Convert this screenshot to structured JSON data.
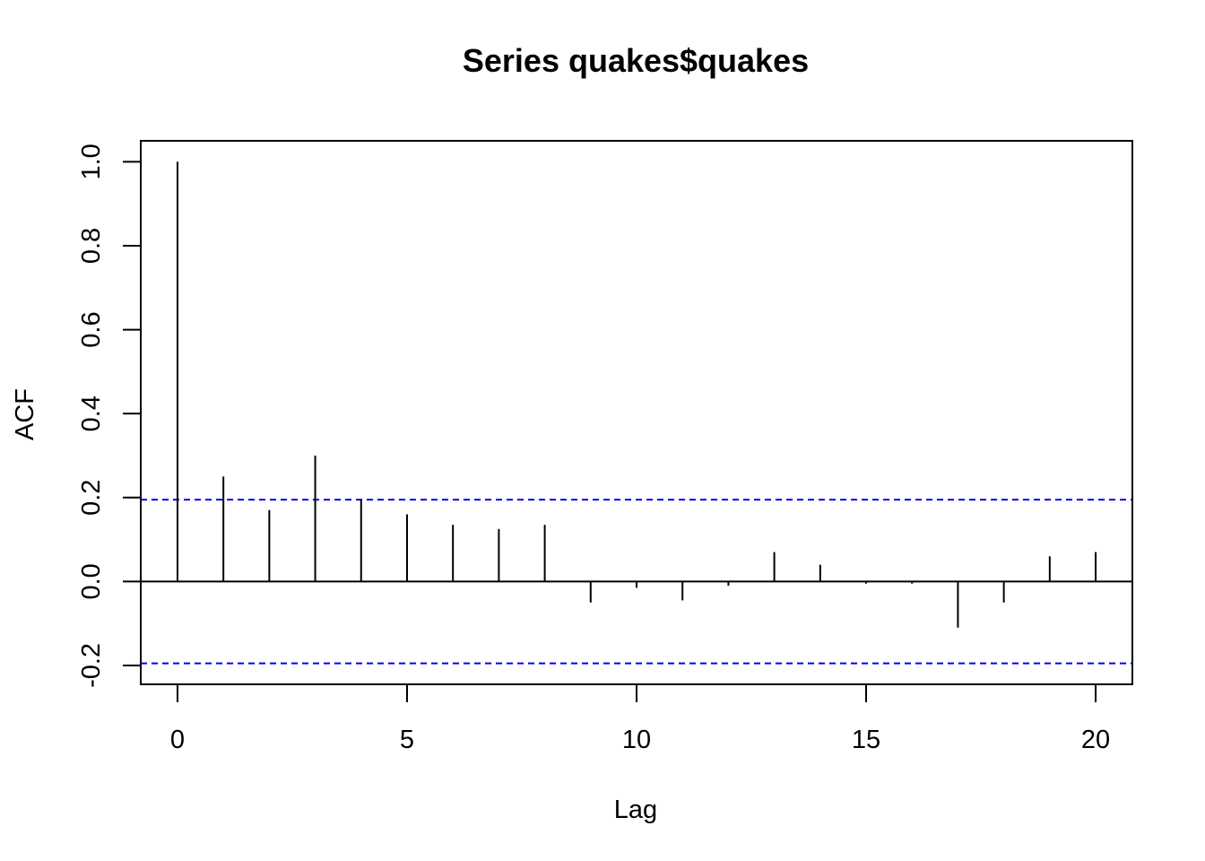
{
  "chart_data": {
    "type": "bar",
    "title": "Series  quakes$quakes",
    "xlabel": "Lag",
    "ylabel": "ACF",
    "xlim": [
      -0.8,
      20.8
    ],
    "ylim": [
      -0.245,
      1.05
    ],
    "x_ticks": [
      0,
      5,
      10,
      15,
      20
    ],
    "x_tick_labels": [
      "0",
      "5",
      "10",
      "15",
      "20"
    ],
    "y_ticks": [
      -0.2,
      0.0,
      0.2,
      0.4,
      0.6,
      0.8,
      1.0
    ],
    "y_tick_labels": [
      "-0.2",
      "0.0",
      "0.2",
      "0.4",
      "0.6",
      "0.8",
      "1.0"
    ],
    "lags": [
      0,
      1,
      2,
      3,
      4,
      5,
      6,
      7,
      8,
      9,
      10,
      11,
      12,
      13,
      14,
      15,
      16,
      17,
      18,
      19,
      20
    ],
    "acf": [
      1.0,
      0.25,
      0.17,
      0.3,
      0.195,
      0.16,
      0.135,
      0.125,
      0.135,
      -0.05,
      -0.015,
      -0.045,
      -0.01,
      0.07,
      0.04,
      -0.005,
      -0.005,
      -0.11,
      -0.05,
      0.06,
      0.07
    ],
    "confidence_bound": 0.195,
    "grid": false,
    "colors": {
      "bars": "#000000",
      "zero_line": "#000000",
      "confidence_lines": "#0000ff",
      "frame": "#000000"
    }
  }
}
